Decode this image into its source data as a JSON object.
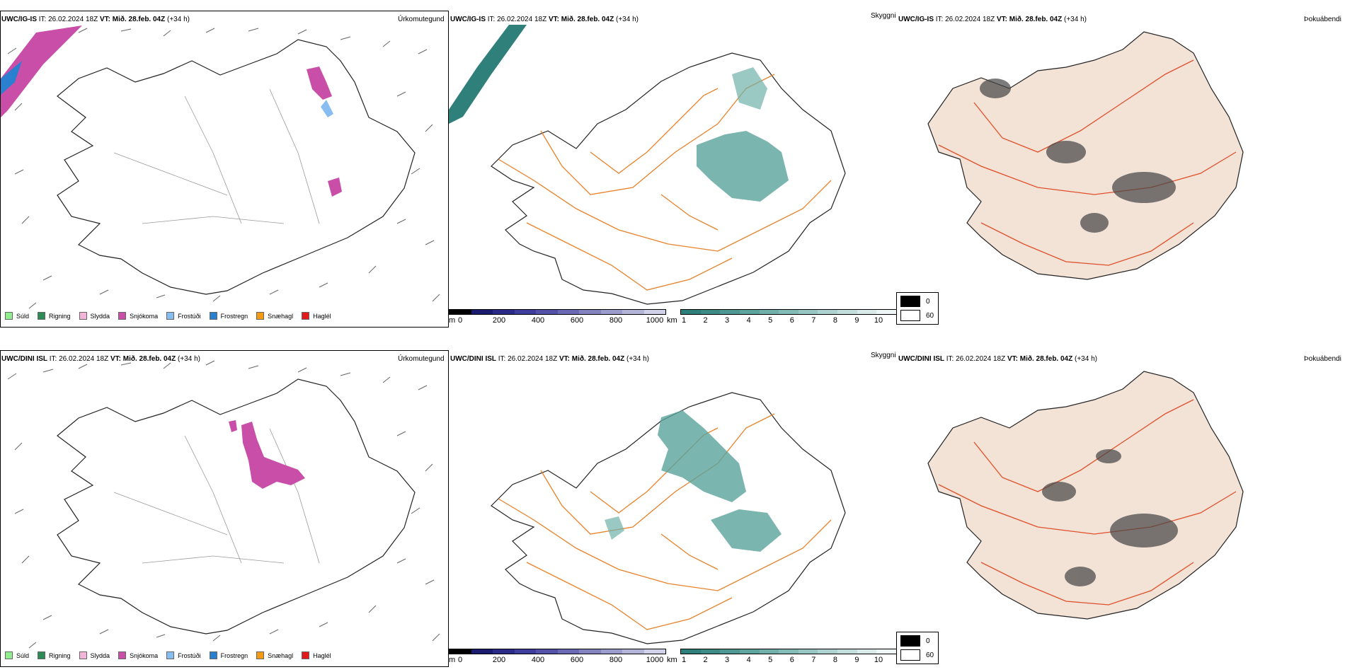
{
  "rows": [
    {
      "model": "UWC/IG-IS",
      "it_label": "IT:",
      "it_value": "26.02.2024 18Z",
      "vt_label": "VT:",
      "vt_value": "Mið. 28.feb. 04Z",
      "lead": "(+34 h)"
    },
    {
      "model": "UWC/DINI ISL",
      "it_label": "IT:",
      "it_value": "26.02.2024 18Z",
      "vt_label": "VT:",
      "vt_value": "Mið. 28.feb. 04Z",
      "lead": "(+34 h)"
    }
  ],
  "panel_titles": {
    "precip": "Úrkomutegund",
    "visibility": "Skyggni",
    "fog": "Þokuábendi"
  },
  "precip_legend": [
    {
      "label": "Súld",
      "color": "#90ee90"
    },
    {
      "label": "Rigning",
      "color": "#2e8b57"
    },
    {
      "label": "Slydda",
      "color": "#f4b6d8"
    },
    {
      "label": "Snjókoma",
      "color": "#c84ea8"
    },
    {
      "label": "Frostúði",
      "color": "#87bdf0"
    },
    {
      "label": "Frostregn",
      "color": "#2a7fcf"
    },
    {
      "label": "Snæhagl",
      "color": "#f39c12"
    },
    {
      "label": "Haglél",
      "color": "#e31a1c"
    }
  ],
  "visibility_scale_m": {
    "unit": "m",
    "ticks": [
      "0",
      "200",
      "400",
      "600",
      "800",
      "1000"
    ],
    "colors": [
      "#000000",
      "#1a1a6e",
      "#2b2b8a",
      "#3d3d9e",
      "#5252a8",
      "#6a6ab4",
      "#8383c0",
      "#9c9ccc",
      "#b5b5d9",
      "#d0d0e8"
    ]
  },
  "visibility_scale_km": {
    "unit": "km",
    "ticks": [
      "1",
      "2",
      "3",
      "4",
      "5",
      "6",
      "7",
      "8",
      "9",
      "10"
    ],
    "colors": [
      "#2f7f7a",
      "#3e8b86",
      "#4e9792",
      "#5fa39e",
      "#71afaa",
      "#84bbb6",
      "#98c7c3",
      "#add3d0",
      "#c2dfdc",
      "#d8ebe9",
      "#eef6f5"
    ]
  },
  "fog_legend": [
    {
      "label": "0",
      "color": "#000000"
    },
    {
      "label": "60",
      "color": "#ffffff"
    }
  ],
  "colors": {
    "road": "#e8822a",
    "road_fog": "#e0502a",
    "land_fog": "#f3e2d6",
    "snow": "#c84ea8",
    "teal": "#5aa39c"
  }
}
